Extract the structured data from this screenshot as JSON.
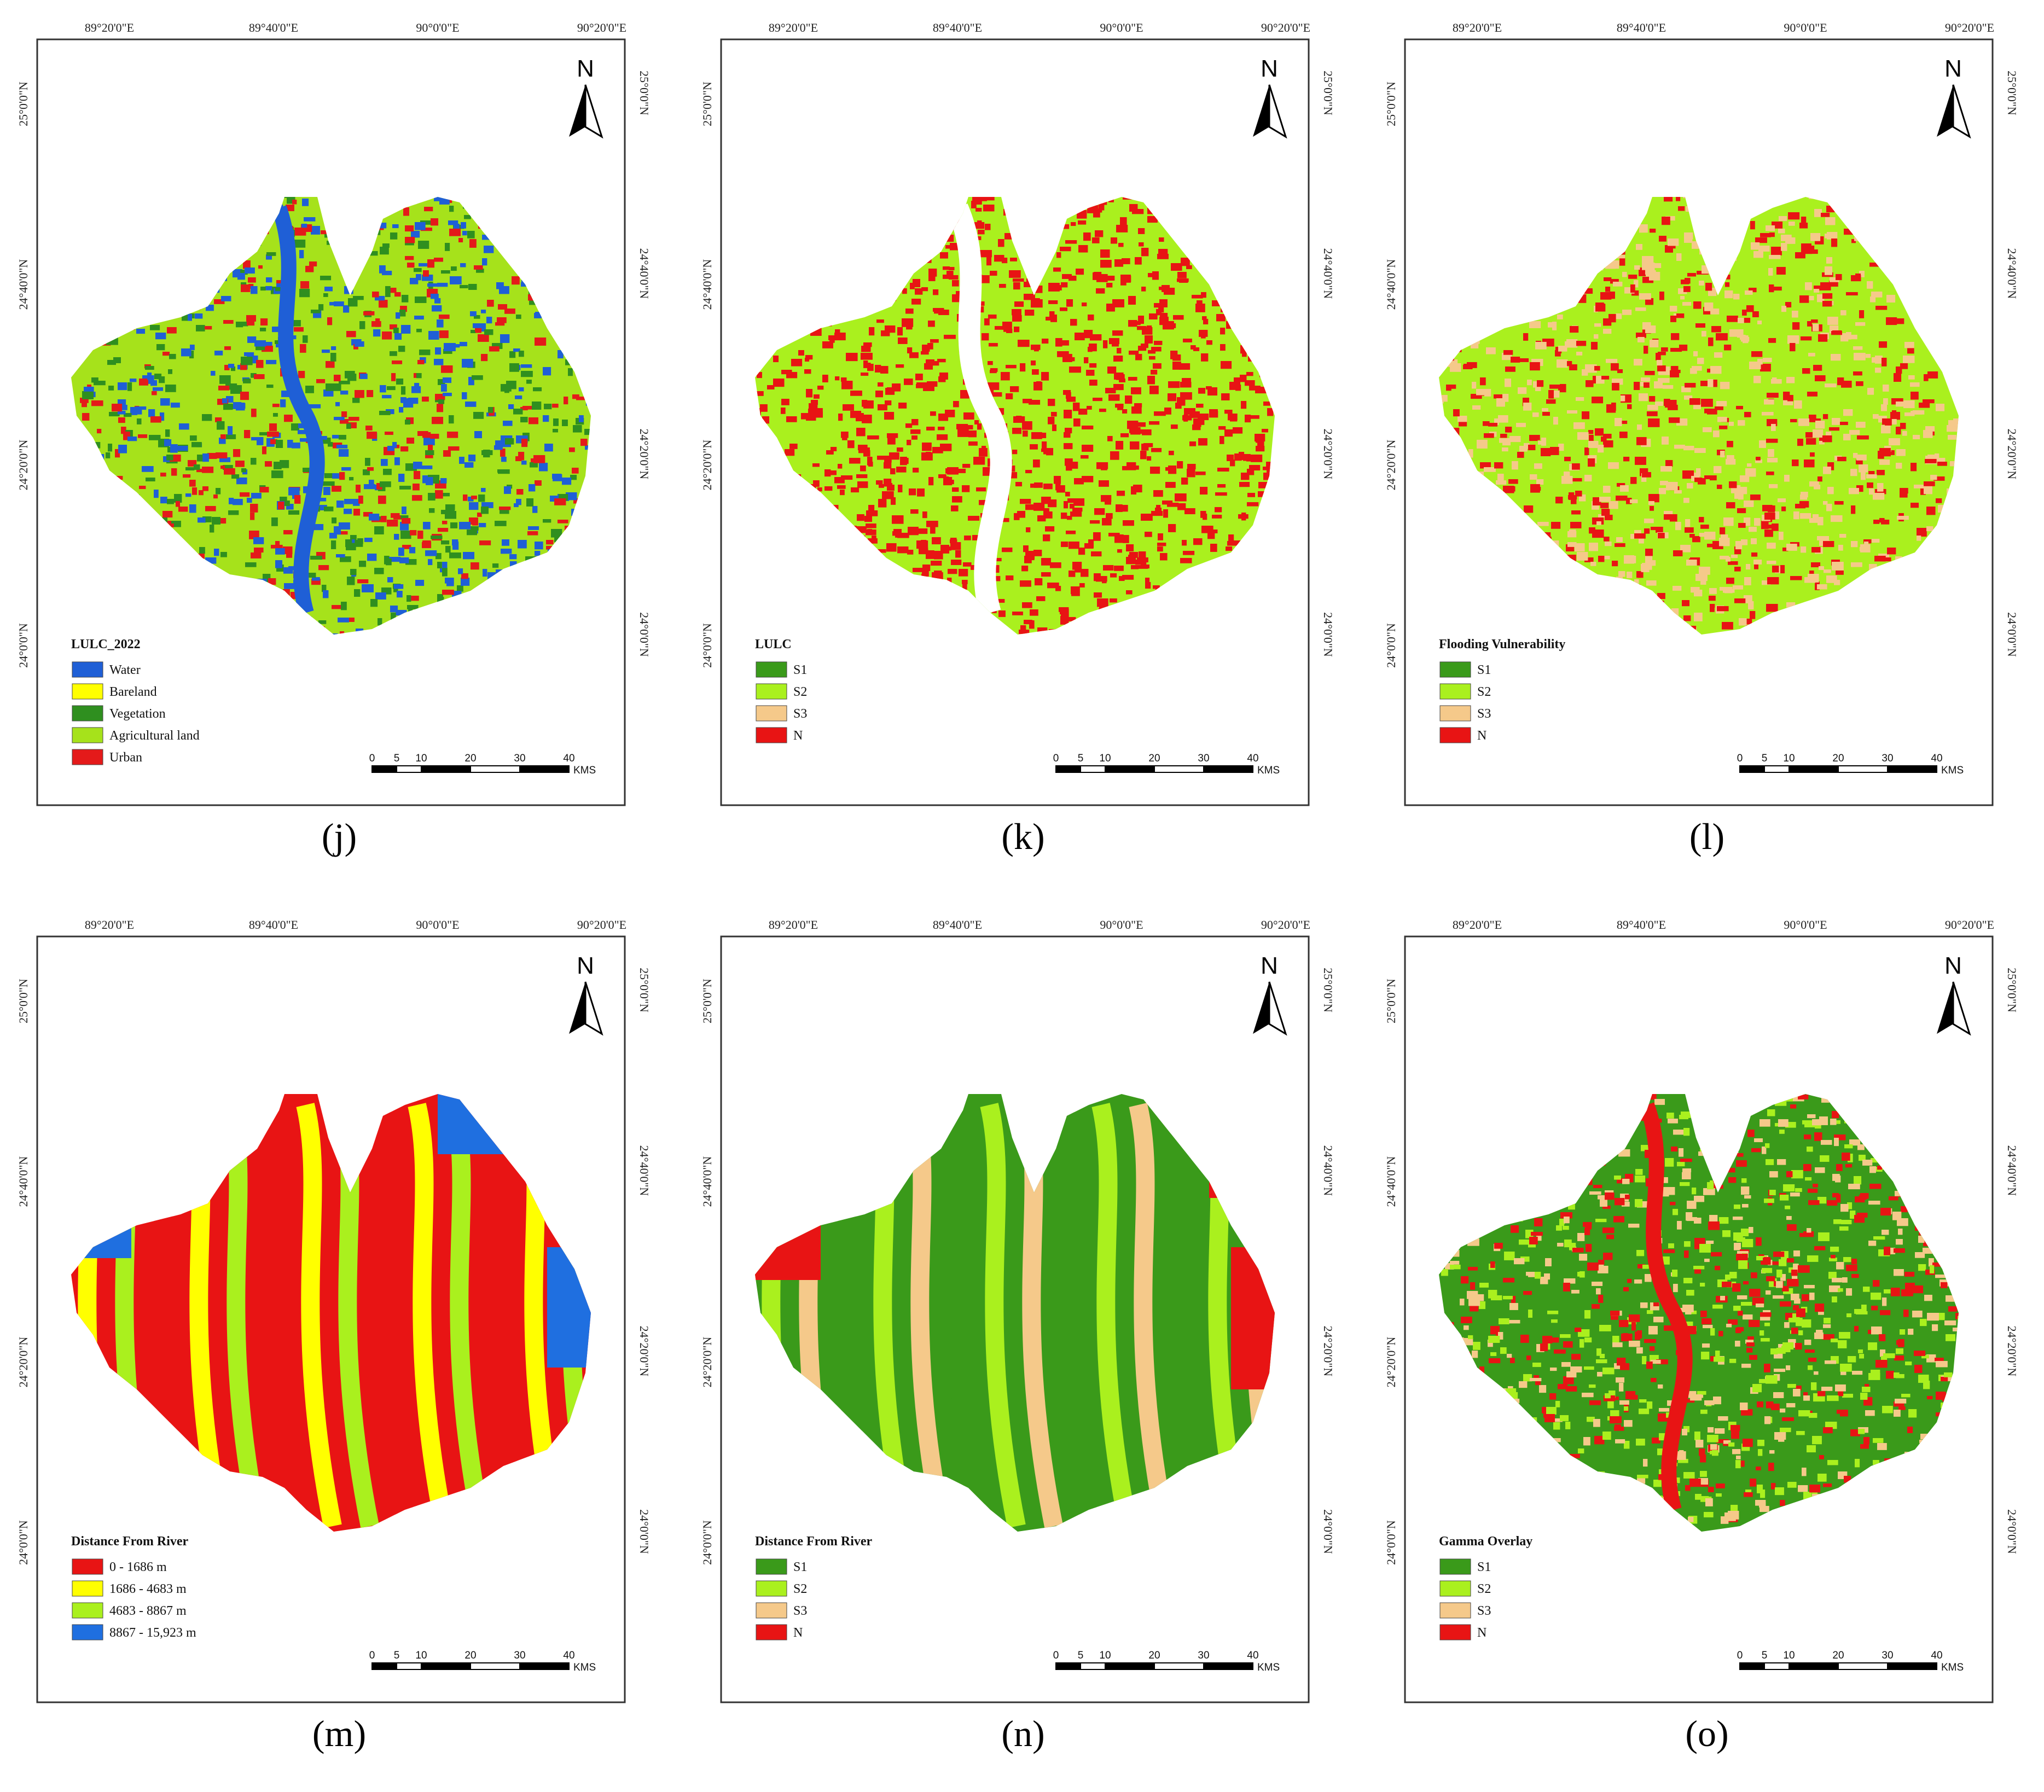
{
  "coords": {
    "lon": [
      "89°20'0\"E",
      "89°40'0\"E",
      "90°0'0\"E",
      "90°20'0\"E"
    ],
    "lat": [
      "25°0'0\"N",
      "24°40'0\"N",
      "24°20'0\"N",
      "24°0'0\"N"
    ]
  },
  "north_label": "N",
  "scale": {
    "ticks": [
      "0",
      "5",
      "10",
      "20",
      "30",
      "40"
    ],
    "unit": "KMS"
  },
  "panels": [
    {
      "caption": "(j)",
      "legend_title": "LULC_2022",
      "legend": [
        {
          "label": "Water",
          "color": "#1f5fd6"
        },
        {
          "label": "Bareland",
          "color": "#ffff00"
        },
        {
          "label": "Vegetation",
          "color": "#2f8f1f"
        },
        {
          "label": "Agricultural land",
          "color": "#a6e21b"
        },
        {
          "label": "Urban",
          "color": "#e41a1a"
        }
      ]
    },
    {
      "caption": "(k)",
      "legend_title": "LULC",
      "legend": [
        {
          "label": "S1",
          "color": "#3a9a1a"
        },
        {
          "label": "S2",
          "color": "#aaf01e"
        },
        {
          "label": "S3",
          "color": "#f5c98a"
        },
        {
          "label": "N",
          "color": "#e81414"
        }
      ]
    },
    {
      "caption": "(l)",
      "legend_title": "Flooding Vulnerability",
      "legend": [
        {
          "label": "S1",
          "color": "#3a9a1a"
        },
        {
          "label": "S2",
          "color": "#aaf01e"
        },
        {
          "label": "S3",
          "color": "#f5c98a"
        },
        {
          "label": "N",
          "color": "#e81414"
        }
      ]
    },
    {
      "caption": "(m)",
      "legend_title": "Distance From River",
      "legend": [
        {
          "label": "0 - 1686 m",
          "color": "#e81414"
        },
        {
          "label": "1686 - 4683 m",
          "color": "#ffff00"
        },
        {
          "label": "4683 - 8867 m",
          "color": "#aaf01e"
        },
        {
          "label": "8867 - 15,923 m",
          "color": "#1f6fe0"
        }
      ]
    },
    {
      "caption": "(n)",
      "legend_title": "Distance From River",
      "legend": [
        {
          "label": "S1",
          "color": "#3a9a1a"
        },
        {
          "label": "S2",
          "color": "#aaf01e"
        },
        {
          "label": "S3",
          "color": "#f5c98a"
        },
        {
          "label": "N",
          "color": "#e81414"
        }
      ]
    },
    {
      "caption": "(o)",
      "legend_title": "Gamma Overlay",
      "legend": [
        {
          "label": "S1",
          "color": "#3a9a1a"
        },
        {
          "label": "S2",
          "color": "#aaf01e"
        },
        {
          "label": "S3",
          "color": "#f5c98a"
        },
        {
          "label": "N",
          "color": "#e81414"
        }
      ]
    }
  ]
}
